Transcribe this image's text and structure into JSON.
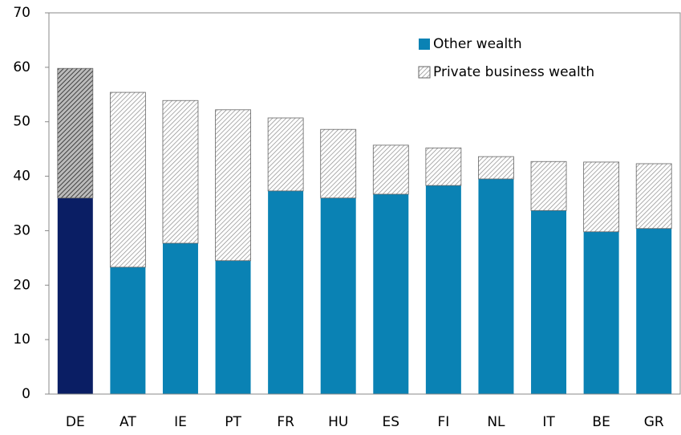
{
  "chart_data": {
    "type": "stacked-bar",
    "categories": [
      "DE",
      "AT",
      "IE",
      "PT",
      "FR",
      "HU",
      "ES",
      "FI",
      "NL",
      "IT",
      "BE",
      "GR"
    ],
    "series": [
      {
        "name": "Other wealth",
        "color": "#0a82b4",
        "highlight_color": "#0a1e64",
        "pattern": "solid",
        "values": [
          36.0,
          23.3,
          27.7,
          24.5,
          37.3,
          36.0,
          36.7,
          38.3,
          39.5,
          33.7,
          29.8,
          30.4
        ]
      },
      {
        "name": "Private business wealth",
        "color": "#8a8a8a",
        "highlight_color": "#222222",
        "pattern": "hatch",
        "values": [
          23.8,
          32.1,
          26.2,
          27.7,
          13.4,
          12.6,
          9.0,
          6.9,
          4.1,
          9.0,
          12.8,
          11.9
        ]
      }
    ],
    "highlight_category": "DE",
    "ylim": [
      0,
      70
    ],
    "yticks": [
      0,
      10,
      20,
      30,
      40,
      50,
      60,
      70
    ],
    "grid": false,
    "legend": "top-right"
  }
}
